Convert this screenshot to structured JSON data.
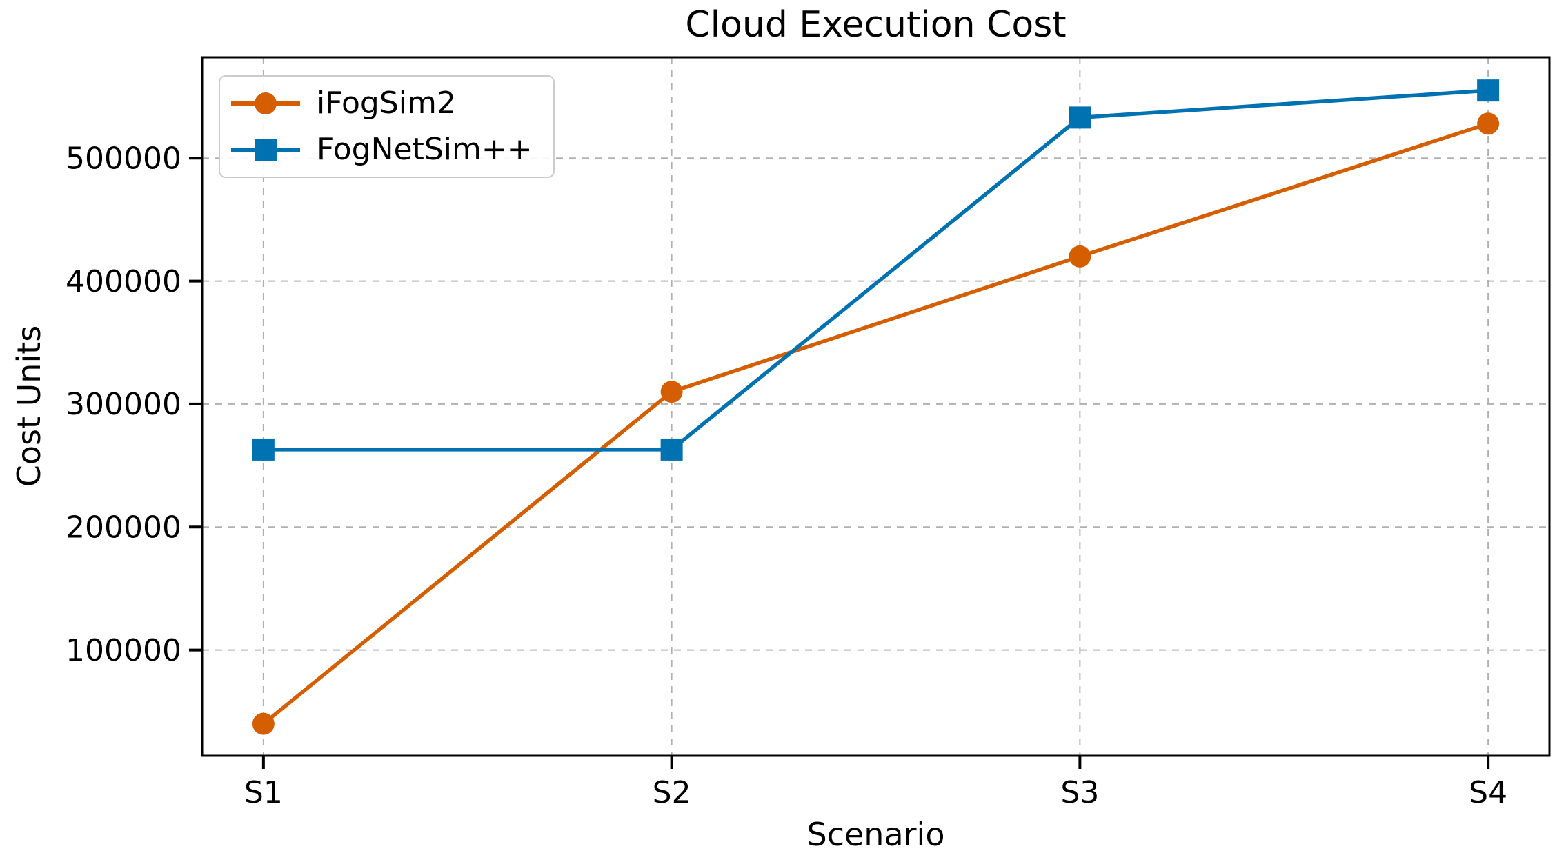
{
  "chart_data": {
    "type": "line",
    "title": "Cloud Execution Cost",
    "xlabel": "Scenario",
    "ylabel": "Cost Units",
    "categories": [
      "S1",
      "S2",
      "S3",
      "S4"
    ],
    "series": [
      {
        "name": "iFogSim2",
        "color": "#D55E00",
        "marker": "circle",
        "values": [
          40000,
          310000,
          420000,
          528000
        ]
      },
      {
        "name": "FogNetSim++",
        "color": "#0072B2",
        "marker": "square",
        "values": [
          263000,
          263000,
          533000,
          555000
        ]
      }
    ],
    "ylim": [
      14000,
      582000
    ],
    "yticks": [
      100000,
      200000,
      300000,
      400000,
      500000
    ],
    "ytick_labels": [
      "100000",
      "200000",
      "300000",
      "400000",
      "500000"
    ],
    "grid": true,
    "grid_style": "dashed",
    "grid_color": "#b0b0b0",
    "spine_color": "#000000",
    "text_color": "#000000",
    "background": "#ffffff",
    "legend_position": "upper left"
  }
}
